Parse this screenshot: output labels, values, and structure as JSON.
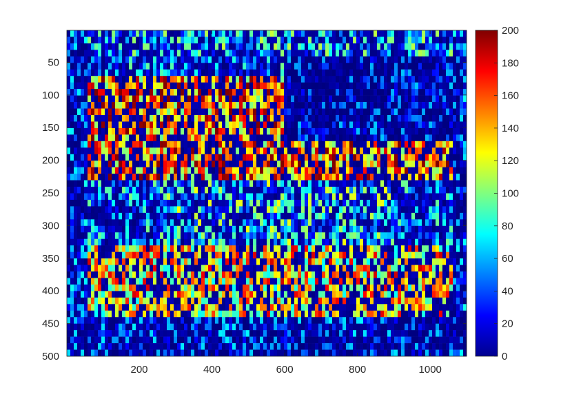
{
  "chart_data": {
    "type": "heatmap",
    "title": "",
    "xlabel": "",
    "ylabel": "",
    "xlim": [
      1,
      1100
    ],
    "ylim": [
      1,
      500
    ],
    "y_reversed": true,
    "x_ticks": [
      200,
      400,
      600,
      800,
      1000
    ],
    "y_ticks": [
      50,
      100,
      150,
      200,
      250,
      300,
      350,
      400,
      450,
      500
    ],
    "colormap": "jet",
    "colorbar": {
      "clim": [
        0,
        200
      ],
      "ticks": [
        0,
        20,
        40,
        60,
        80,
        100,
        120,
        140,
        160,
        180,
        200
      ],
      "placement": "right"
    },
    "description_regions": [
      {
        "rows": [
          1,
          40
        ],
        "cols": [
          1,
          1100
        ],
        "level": "mixed-noisy",
        "mean": 60
      },
      {
        "rows": [
          70,
          230
        ],
        "cols": [
          60,
          1060
        ],
        "level": "high",
        "mean": 150
      },
      {
        "rows": [
          40,
          170
        ],
        "cols": [
          600,
          1060
        ],
        "level": "near-zero",
        "mean": 10
      },
      {
        "rows": [
          230,
          360
        ],
        "cols": [
          250,
          900
        ],
        "level": "medium",
        "mean": 70
      },
      {
        "rows": [
          330,
          460
        ],
        "cols": [
          60,
          1060
        ],
        "level": "high",
        "mean": 130
      },
      {
        "rows": [
          440,
          500
        ],
        "cols": [
          1,
          1100
        ],
        "level": "sparse-low",
        "mean": 20
      }
    ]
  }
}
